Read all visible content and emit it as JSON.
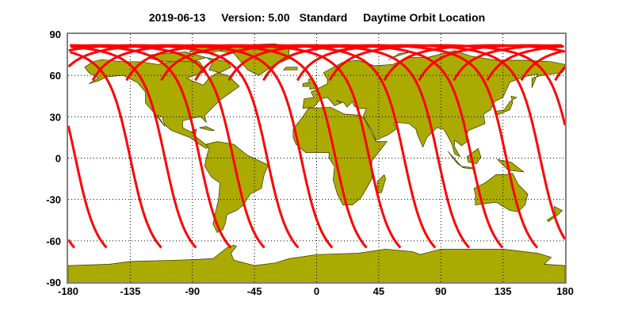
{
  "title": {
    "date": "2019-06-13",
    "version": "Version: 5.00",
    "product": "Standard",
    "description": "Daytime Orbit Location"
  },
  "axes": {
    "lon_ticks": [
      "-180",
      "-135",
      "-90",
      "-45",
      "0",
      "45",
      "90",
      "135",
      "180"
    ],
    "lat_ticks": [
      "90",
      "60",
      "30",
      "0",
      "-30",
      "-60",
      "-90"
    ],
    "lon_range": [
      -180,
      180
    ],
    "lat_range": [
      -90,
      90
    ],
    "grid": "dotted"
  },
  "map": {
    "projection": "equirectangular",
    "land_color": "#AAAA00",
    "coast_color": "#333300",
    "track_color": "#FF0000",
    "orbit_inclination_deg": 98.2,
    "track_lat_range_south": -65,
    "track_lat_range_north_descending": 56,
    "tracks_equator_crossing_lon": [
      -174.7,
      -135,
      -109.9,
      -84.7,
      -60.4,
      -35.8,
      -11.2,
      13.7,
      38.2,
      63.4,
      88,
      112.3,
      137.4,
      162
    ]
  }
}
